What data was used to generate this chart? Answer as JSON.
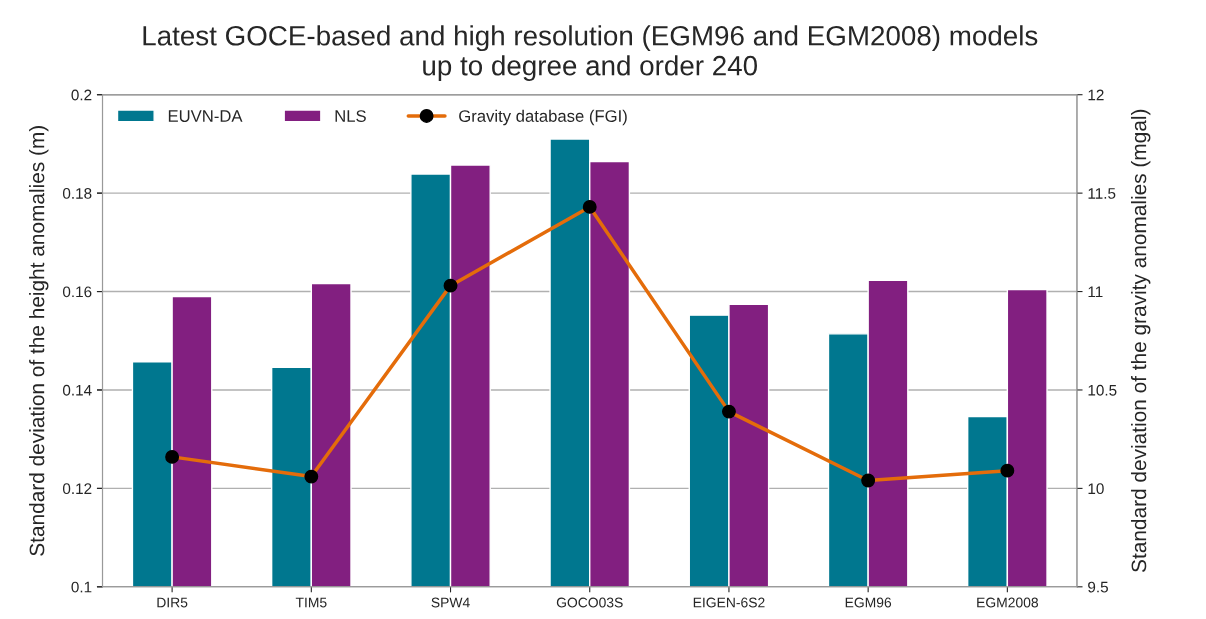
{
  "chart_data": {
    "type": "bar",
    "title": "Latest GOCE-based and high resolution (EGM96 and EGM2008) models\nup to degree and order 240",
    "ylabel": "Standard deviation of the height anomalies (m)",
    "y2label": "Standard deviation of the gravity anomalies (mgal)",
    "categories": [
      "DIR5",
      "TIM5",
      "SPW4",
      "GOCO03S",
      "EIGEN-6S2",
      "EGM96",
      "EGM2008"
    ],
    "series": [
      {
        "name": "EUVN-DA",
        "color": "#00778f",
        "values": [
          0.1457,
          0.1446,
          0.1839,
          0.191,
          0.1552,
          0.1514,
          0.1346
        ]
      },
      {
        "name": "NLS",
        "color": "#821f80",
        "values": [
          0.159,
          0.1616,
          0.1857,
          0.1864,
          0.1574,
          0.1623,
          0.1604
        ]
      },
      {
        "name": "Gravity database (FGI)",
        "type": "line",
        "axis": "y2",
        "color": "#e46c0a",
        "marker": "circle",
        "values": [
          10.16,
          10.06,
          11.03,
          11.43,
          10.39,
          10.04,
          10.09
        ]
      }
    ],
    "ylim": [
      0.1,
      0.2
    ],
    "yticks": [
      0.1,
      0.12,
      0.14,
      0.16,
      0.18,
      0.2
    ],
    "y2lim": [
      9.5,
      12
    ],
    "y2ticks": [
      9.5,
      10,
      10.5,
      11,
      11.5,
      12
    ],
    "grid": "y",
    "legend": "top left"
  }
}
